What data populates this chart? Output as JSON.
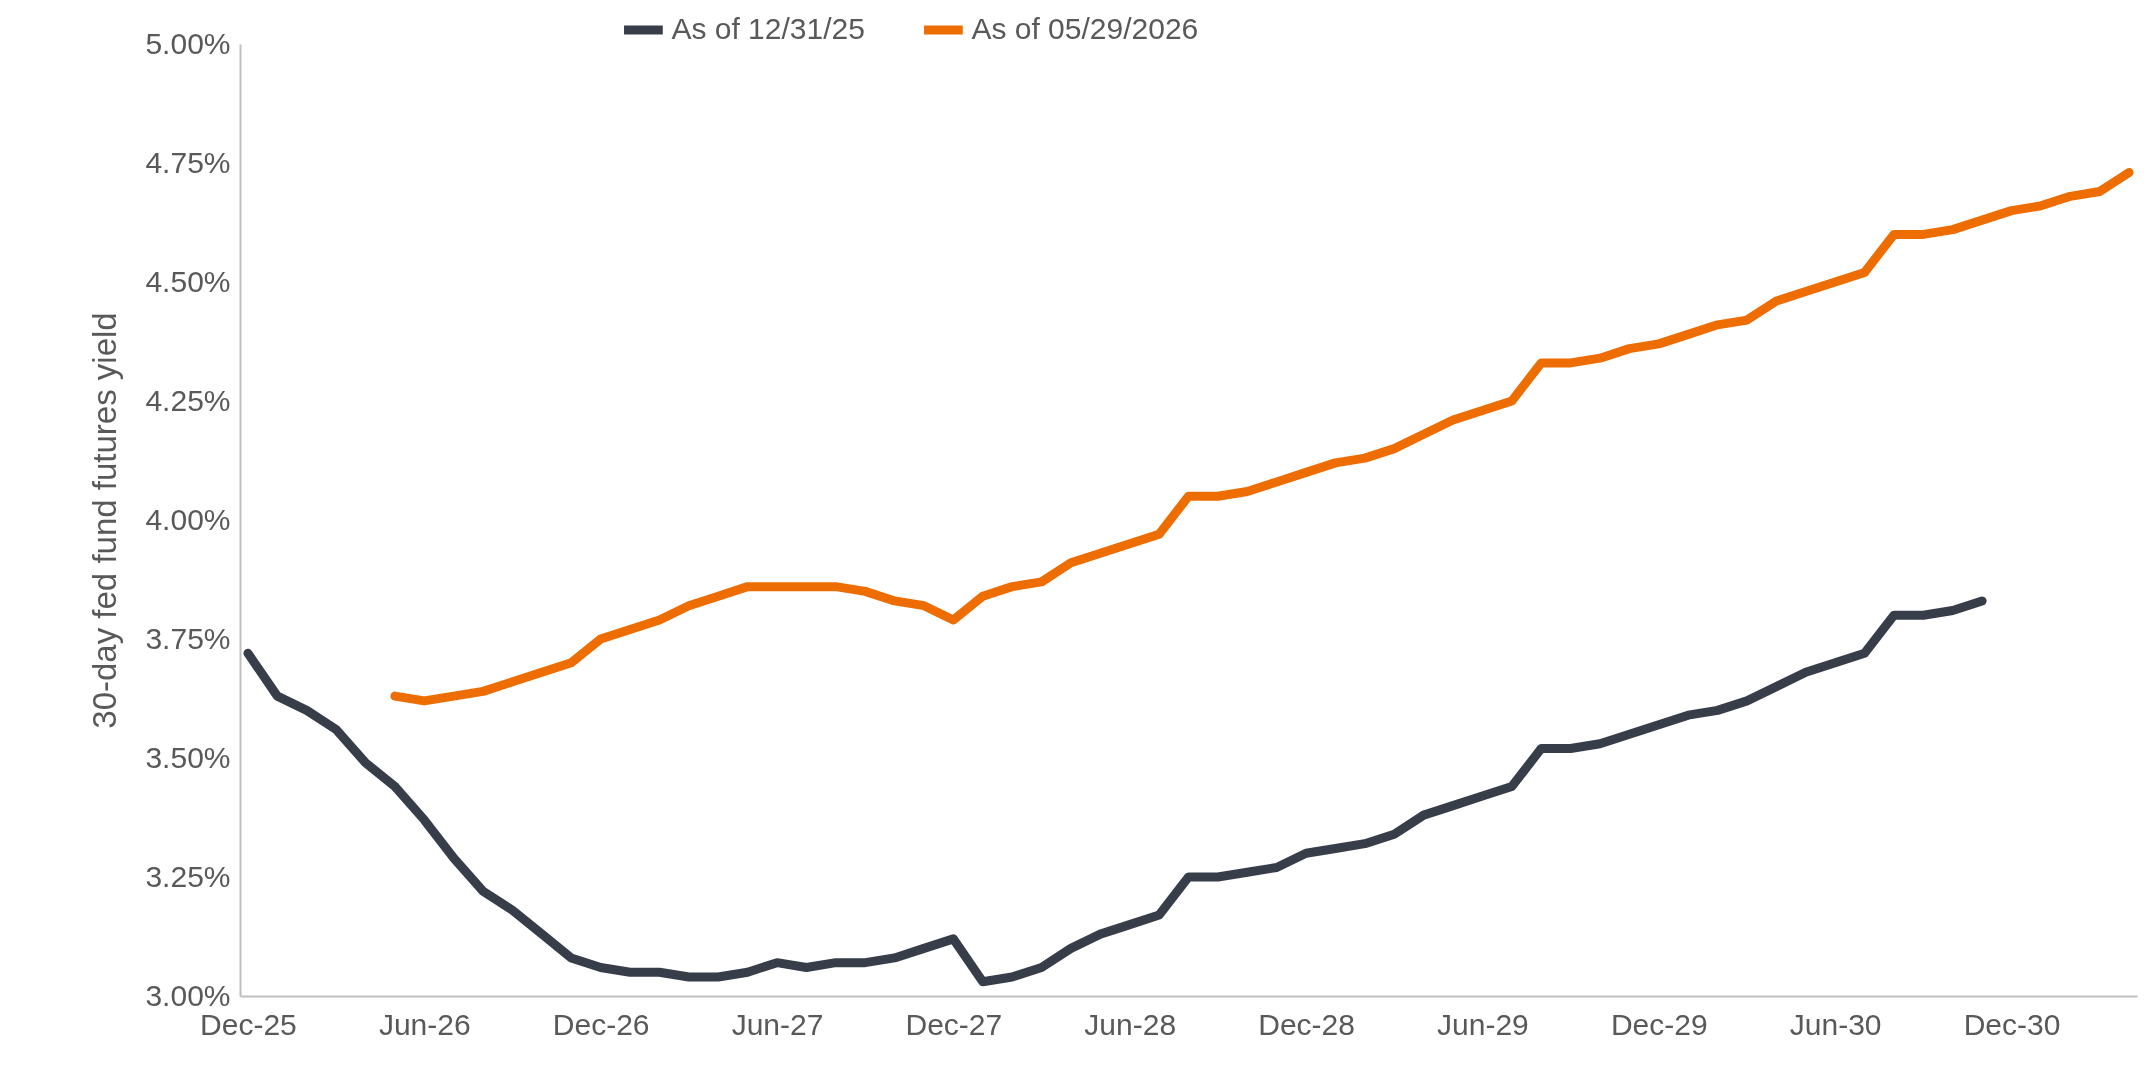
{
  "chart_data": {
    "type": "line",
    "ylabel": "30-day fed fund futures yield",
    "categories": [
      "Dec-25",
      null,
      null,
      null,
      null,
      null,
      "Jun-26",
      null,
      null,
      null,
      null,
      null,
      "Dec-26",
      null,
      null,
      null,
      null,
      null,
      "Jun-27",
      null,
      null,
      null,
      null,
      null,
      "Dec-27",
      null,
      null,
      null,
      null,
      null,
      "Jun-28",
      null,
      null,
      null,
      null,
      null,
      "Dec-28",
      null,
      null,
      null,
      null,
      null,
      "Jun-29",
      null,
      null,
      null,
      null,
      null,
      "Dec-29",
      null,
      null,
      null,
      null,
      null,
      "Jun-30",
      null,
      null,
      null,
      null,
      null,
      "Dec-30",
      null,
      null,
      null,
      null
    ],
    "series": [
      {
        "name": "As of 12/31/25",
        "color": "#383d4a",
        "values": [
          3.72,
          3.63,
          3.6,
          3.56,
          3.49,
          3.44,
          3.37,
          3.29,
          3.22,
          3.18,
          3.13,
          3.08,
          3.06,
          3.05,
          3.05,
          3.04,
          3.04,
          3.05,
          3.07,
          3.06,
          3.07,
          3.07,
          3.08,
          3.1,
          3.12,
          3.03,
          3.04,
          3.06,
          3.1,
          3.13,
          3.15,
          3.17,
          3.25,
          3.25,
          3.26,
          3.27,
          3.3,
          3.31,
          3.32,
          3.34,
          3.38,
          3.4,
          3.42,
          3.44,
          3.52,
          3.52,
          3.53,
          3.55,
          3.57,
          3.59,
          3.6,
          3.62,
          3.65,
          3.68,
          3.7,
          3.72,
          3.8,
          3.8,
          3.81,
          3.83,
          null,
          null,
          null,
          null,
          null
        ]
      },
      {
        "name": "As of 05/29/2026",
        "color": "#ee6d00",
        "values": [
          null,
          null,
          null,
          null,
          null,
          3.63,
          3.62,
          3.63,
          3.64,
          3.66,
          3.68,
          3.7,
          3.75,
          3.77,
          3.79,
          3.82,
          3.84,
          3.86,
          3.86,
          3.86,
          3.86,
          3.85,
          3.83,
          3.82,
          3.79,
          3.84,
          3.86,
          3.87,
          3.91,
          3.93,
          3.95,
          3.97,
          4.05,
          4.05,
          4.06,
          4.08,
          4.1,
          4.12,
          4.13,
          4.15,
          4.18,
          4.21,
          4.23,
          4.25,
          4.33,
          4.33,
          4.34,
          4.36,
          4.37,
          4.39,
          4.41,
          4.42,
          4.46,
          4.48,
          4.5,
          4.52,
          4.6,
          4.6,
          4.61,
          4.63,
          4.65,
          4.66,
          4.68,
          4.69,
          4.73
        ]
      }
    ],
    "ylim": [
      3,
      5
    ],
    "yticks": [
      {
        "value": 3,
        "label": "3.00%"
      },
      {
        "value": 3.25,
        "label": "3.25%"
      },
      {
        "value": 3.5,
        "label": "3.50%"
      },
      {
        "value": 3.75,
        "label": "3.75%"
      },
      {
        "value": 4,
        "label": "4.00%"
      },
      {
        "value": 4.25,
        "label": "4.25%"
      },
      {
        "value": 4.5,
        "label": "4.50%"
      },
      {
        "value": 4.75,
        "label": "4.75%"
      },
      {
        "value": 5,
        "label": "5.00%"
      }
    ],
    "legend": "top"
  }
}
